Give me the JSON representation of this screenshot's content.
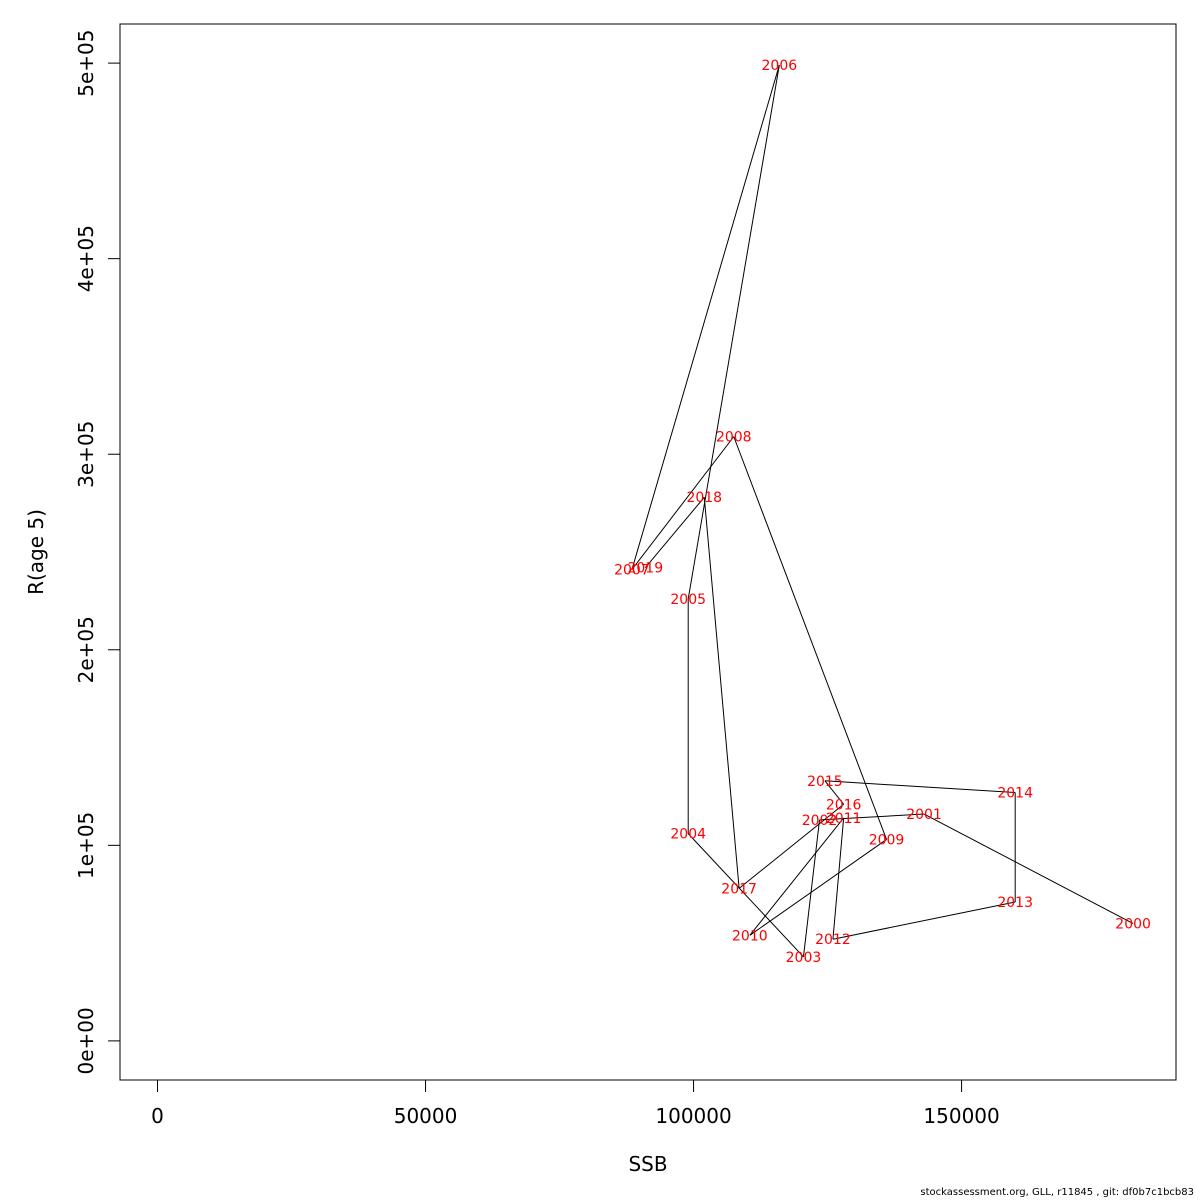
{
  "colors": {
    "label": "#ff0000",
    "path": "#000000",
    "axis": "#000000",
    "background": "#ffffff"
  },
  "footer": {
    "credit": "stockassessment.org, GLL, r11845 , git: df0b7c1bcb83"
  },
  "chart_data": {
    "type": "line",
    "xlabel": "SSB",
    "ylabel": "R(age 5)",
    "xlim": [
      -7000,
      190000
    ],
    "ylim": [
      -20000,
      520000
    ],
    "grid": false,
    "legend": "none",
    "x_ticks": [
      0,
      50000,
      100000,
      150000
    ],
    "x_tick_labels": [
      "0",
      "50000",
      "100000",
      "150000"
    ],
    "y_ticks": [
      0,
      100000,
      200000,
      300000,
      400000,
      500000
    ],
    "y_tick_labels": [
      "0e+00",
      "1e+05",
      "2e+05",
      "3e+05",
      "4e+05",
      "5e+05"
    ],
    "points": [
      {
        "label": "2000",
        "x": 182000,
        "y": 60000
      },
      {
        "label": "2001",
        "x": 143000,
        "y": 116000
      },
      {
        "label": "2002",
        "x": 123500,
        "y": 113000
      },
      {
        "label": "2003",
        "x": 120500,
        "y": 43000
      },
      {
        "label": "2004",
        "x": 99000,
        "y": 106000
      },
      {
        "label": "2005",
        "x": 99000,
        "y": 226000
      },
      {
        "label": "2006",
        "x": 116000,
        "y": 499000
      },
      {
        "label": "2007",
        "x": 88500,
        "y": 241000
      },
      {
        "label": "2008",
        "x": 107500,
        "y": 309000
      },
      {
        "label": "2009",
        "x": 136000,
        "y": 103000
      },
      {
        "label": "2010",
        "x": 110500,
        "y": 54000
      },
      {
        "label": "2011",
        "x": 128000,
        "y": 114000
      },
      {
        "label": "2012",
        "x": 126000,
        "y": 52000
      },
      {
        "label": "2013",
        "x": 160000,
        "y": 71000
      },
      {
        "label": "2014",
        "x": 160000,
        "y": 127000
      },
      {
        "label": "2015",
        "x": 124500,
        "y": 133000
      },
      {
        "label": "2016",
        "x": 128000,
        "y": 121000
      },
      {
        "label": "2017",
        "x": 108500,
        "y": 78000
      },
      {
        "label": "2018",
        "x": 102000,
        "y": 278000
      },
      {
        "label": "2019",
        "x": 91000,
        "y": 242000
      }
    ]
  }
}
